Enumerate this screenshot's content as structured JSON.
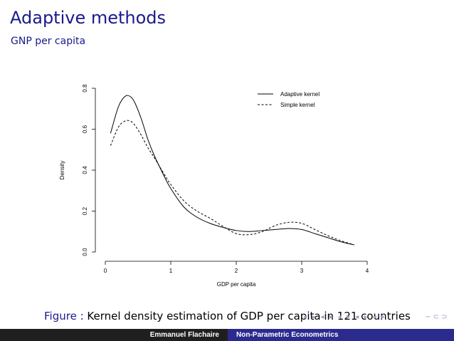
{
  "slide": {
    "title": "Adaptive methods",
    "subtitle": "GNP per capita",
    "caption_label": "Figure :",
    "caption_text": "Kernel density estimation of GDP per capita in 121 countries",
    "nav_symbols": "◂ ▸ ◂ ▸ ◂ ▸ ◂ ▸ ◂ ▸",
    "nav_search": "∽ ⊂ ⊃",
    "footer_author": "Emmanuel Flachaire",
    "footer_title": "Non-Parametric Econometrics"
  },
  "colors": {
    "title": "#1a1a8c",
    "footer_left": "#1f1f1f",
    "footer_right": "#2b2b8f",
    "series": "#000000"
  },
  "chart_data": {
    "type": "line",
    "title": "",
    "xlabel": "GDP per capita",
    "ylabel": "Density",
    "xlim": [
      0,
      4
    ],
    "ylim": [
      0,
      0.8
    ],
    "xticks": [
      0,
      1,
      2,
      3,
      4
    ],
    "yticks": [
      0.0,
      0.2,
      0.4,
      0.6,
      0.8
    ],
    "xtick_labels": [
      "0",
      "1",
      "2",
      "3",
      "4"
    ],
    "ytick_labels": [
      "0.0",
      "0.2",
      "0.4",
      "0.6",
      "0.8"
    ],
    "legend_position": "top-right",
    "series": [
      {
        "name": "Adaptive kernel",
        "style": "solid",
        "x": [
          0.08,
          0.2,
          0.3,
          0.38,
          0.45,
          0.55,
          0.65,
          0.75,
          0.9,
          1.0,
          1.2,
          1.4,
          1.6,
          1.8,
          2.0,
          2.2,
          2.4,
          2.6,
          2.8,
          3.0,
          3.2,
          3.4,
          3.6,
          3.8
        ],
        "y": [
          0.58,
          0.71,
          0.76,
          0.76,
          0.73,
          0.65,
          0.55,
          0.47,
          0.37,
          0.31,
          0.22,
          0.17,
          0.14,
          0.12,
          0.105,
          0.1,
          0.105,
          0.11,
          0.115,
          0.11,
          0.09,
          0.07,
          0.05,
          0.035
        ]
      },
      {
        "name": "Simple kernel",
        "style": "dashed",
        "x": [
          0.08,
          0.2,
          0.3,
          0.38,
          0.45,
          0.55,
          0.65,
          0.75,
          0.9,
          1.0,
          1.2,
          1.4,
          1.6,
          1.8,
          2.0,
          2.2,
          2.4,
          2.6,
          2.8,
          3.0,
          3.2,
          3.4,
          3.6,
          3.8
        ],
        "y": [
          0.52,
          0.61,
          0.64,
          0.64,
          0.62,
          0.57,
          0.51,
          0.46,
          0.38,
          0.33,
          0.25,
          0.2,
          0.165,
          0.125,
          0.09,
          0.085,
          0.1,
          0.13,
          0.145,
          0.14,
          0.11,
          0.08,
          0.055,
          0.035
        ]
      }
    ]
  }
}
